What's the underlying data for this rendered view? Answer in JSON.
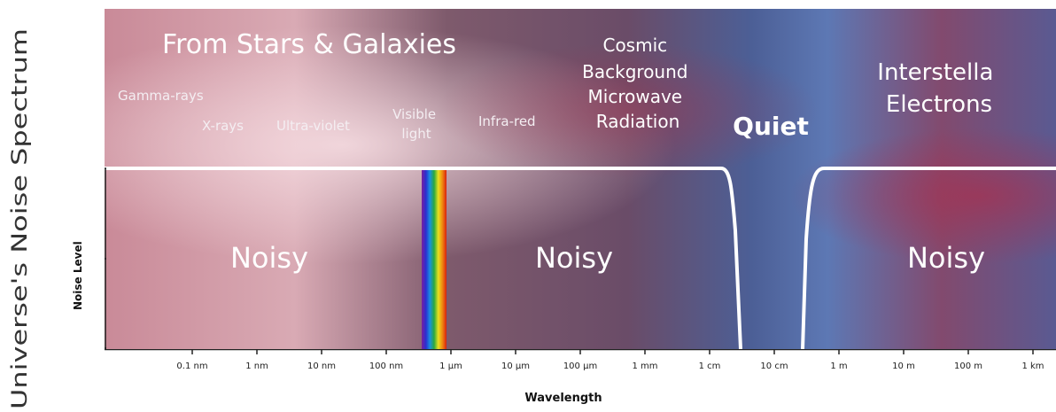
{
  "title": "Universe's Noise Spectrum",
  "y_axis_label": "Noise Level",
  "x_axis_label": "Wavelength",
  "x_ticks": [
    "0.1 nm",
    "1 nm",
    "10 nm",
    "100 nm",
    "1 µm",
    "10 µm",
    "100 µm",
    "1 mm",
    "1 cm",
    "10 cm",
    "1 m",
    "10 m",
    "100 m",
    "1 km"
  ],
  "sources": {
    "stars_galaxies": "From Stars & Galaxies",
    "cmb": [
      "Cosmic",
      "Background",
      "Microwave",
      "Radiation"
    ],
    "interstellar": [
      "Interstella",
      "Electrons"
    ],
    "quiet": "Quiet"
  },
  "bands": {
    "gamma": "Gamma-rays",
    "xray": "X-rays",
    "uv": "Ultra-violet",
    "visible": [
      "Visible",
      "light"
    ],
    "ir": "Infra-red"
  },
  "regions": [
    "Noisy",
    "Noisy",
    "Noisy"
  ],
  "colors": {
    "curve": "#ffffff",
    "sky_pink": "#c98a98",
    "sky_purple": "#6e4d6e",
    "sky_blue": "#4f6ea8"
  }
}
